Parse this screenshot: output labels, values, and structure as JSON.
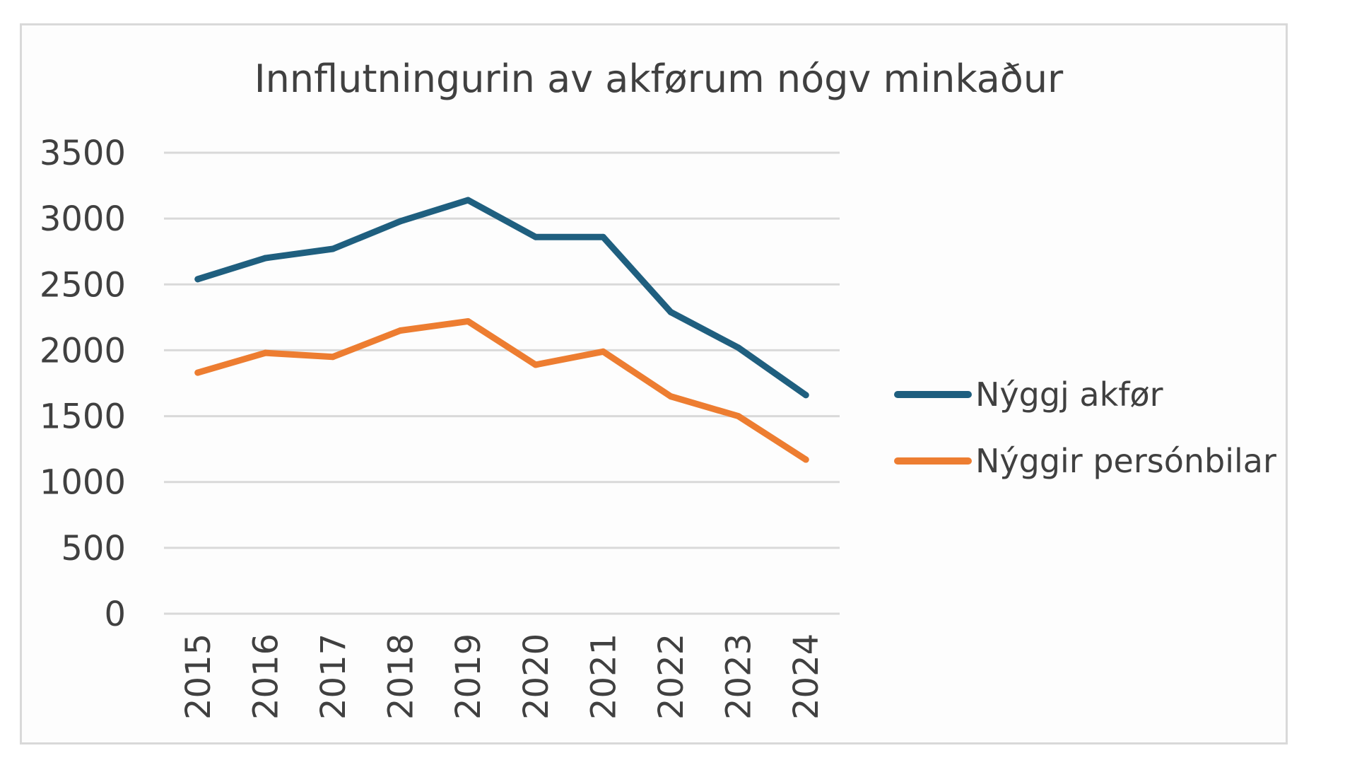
{
  "chart_data": {
    "type": "line",
    "title": "Innflutningurin av akførum nógv minkaður",
    "xlabel": "",
    "ylabel": "",
    "categories": [
      "2015",
      "2016",
      "2017",
      "2018",
      "2019",
      "2020",
      "2021",
      "2022",
      "2023",
      "2024"
    ],
    "yticks": [
      "0",
      "500",
      "1000",
      "1500",
      "2000",
      "2500",
      "3000",
      "3500"
    ],
    "ylim": [
      0,
      3500
    ],
    "grid": true,
    "legend": "right",
    "series": [
      {
        "name": "Nýggj akfør",
        "color": "#1f5f7f",
        "values": [
          2540,
          2700,
          2770,
          2980,
          3140,
          2860,
          2860,
          2290,
          2020,
          1660
        ]
      },
      {
        "name": "Nýggir persónbilar",
        "color": "#ed7d31",
        "values": [
          1830,
          1980,
          1950,
          2150,
          2220,
          1890,
          1990,
          1650,
          1500,
          1170
        ]
      }
    ]
  }
}
